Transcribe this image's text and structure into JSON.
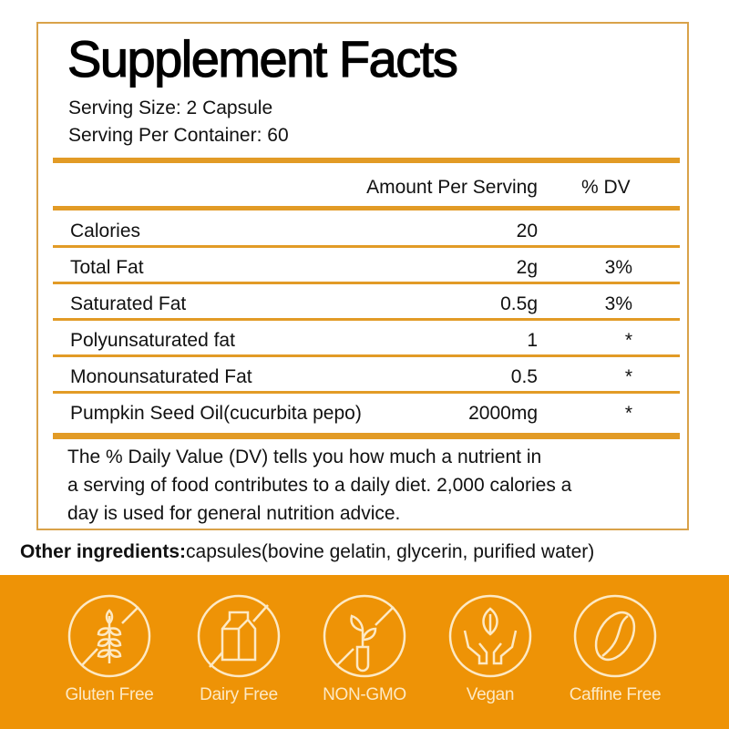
{
  "title": "Supplement Facts",
  "serving_size": "Serving Size: 2 Capsule",
  "servings_per_container": "Serving Per Container: 60",
  "header": {
    "amount": "Amount Per Serving",
    "dv": "% DV"
  },
  "rows": [
    {
      "name": "Calories",
      "amount": "20",
      "dv": ""
    },
    {
      "name": "Total Fat",
      "amount": "2g",
      "dv": "3%"
    },
    {
      "name": "Saturated Fat",
      "amount": "0.5g",
      "dv": "3%"
    },
    {
      "name": "Polyunsaturated fat",
      "amount": "1",
      "dv": "*"
    },
    {
      "name": "Monounsaturated Fat",
      "amount": "0.5",
      "dv": "*"
    },
    {
      "name": "Pumpkin Seed Oil(cucurbita pepo)",
      "amount": "2000mg",
      "dv": "*"
    }
  ],
  "footnote": [
    "The % Daily Value (DV) tells you how much a nutrient in",
    "a serving of food contributes to a daily diet. 2,000 calories a",
    "day is used for general nutrition advice."
  ],
  "other_label": "Other ingredients:",
  "other_value": "capsules(bovine gelatin, glycerin, purified water)",
  "badges": [
    {
      "label": "Gluten Free",
      "icon": "wheat-icon"
    },
    {
      "label": "Dairy Free",
      "icon": "milk-carton-icon"
    },
    {
      "label": "NON-GMO",
      "icon": "plant-test-tube-icon"
    },
    {
      "label": "Vegan",
      "icon": "hands-leaf-icon"
    },
    {
      "label": "Caffine Free",
      "icon": "coffee-bean-icon"
    }
  ],
  "colors": {
    "accent": "#e29b26",
    "band": "#ee9306",
    "badge_text": "#fde9c4"
  }
}
